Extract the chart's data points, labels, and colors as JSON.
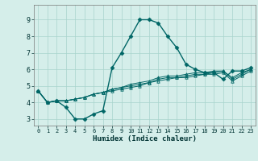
{
  "xlabel": "Humidex (Indice chaleur)",
  "bg_color": "#d5eeea",
  "grid_color": "#a8d4cc",
  "line_color": "#006666",
  "x_ticks": [
    0,
    1,
    2,
    3,
    4,
    5,
    6,
    7,
    8,
    9,
    10,
    11,
    12,
    13,
    14,
    15,
    16,
    17,
    18,
    19,
    20,
    21,
    22,
    23
  ],
  "y_ticks": [
    3,
    4,
    5,
    6,
    7,
    8,
    9
  ],
  "ylim": [
    2.6,
    9.9
  ],
  "xlim": [
    -0.5,
    23.5
  ],
  "series": [
    [
      4.7,
      4.0,
      4.1,
      3.7,
      3.0,
      3.0,
      3.3,
      3.5,
      6.1,
      7.0,
      8.0,
      9.0,
      9.0,
      8.8,
      8.0,
      7.3,
      6.3,
      6.0,
      5.8,
      5.8,
      5.4,
      5.9,
      5.9,
      6.1
    ],
    [
      4.7,
      4.0,
      4.1,
      4.1,
      4.2,
      4.3,
      4.5,
      4.6,
      4.8,
      4.9,
      5.1,
      5.2,
      5.3,
      5.5,
      5.6,
      5.6,
      5.7,
      5.8,
      5.8,
      5.9,
      5.9,
      5.5,
      5.8,
      6.0
    ],
    [
      4.7,
      4.0,
      4.1,
      4.1,
      4.2,
      4.3,
      4.5,
      4.6,
      4.8,
      4.9,
      5.0,
      5.1,
      5.2,
      5.4,
      5.5,
      5.5,
      5.6,
      5.7,
      5.7,
      5.8,
      5.9,
      5.4,
      5.7,
      6.0
    ],
    [
      4.7,
      4.0,
      4.1,
      4.1,
      4.2,
      4.3,
      4.5,
      4.6,
      4.7,
      4.8,
      4.9,
      5.0,
      5.2,
      5.3,
      5.4,
      5.5,
      5.5,
      5.6,
      5.7,
      5.7,
      5.8,
      5.3,
      5.6,
      5.9
    ]
  ]
}
